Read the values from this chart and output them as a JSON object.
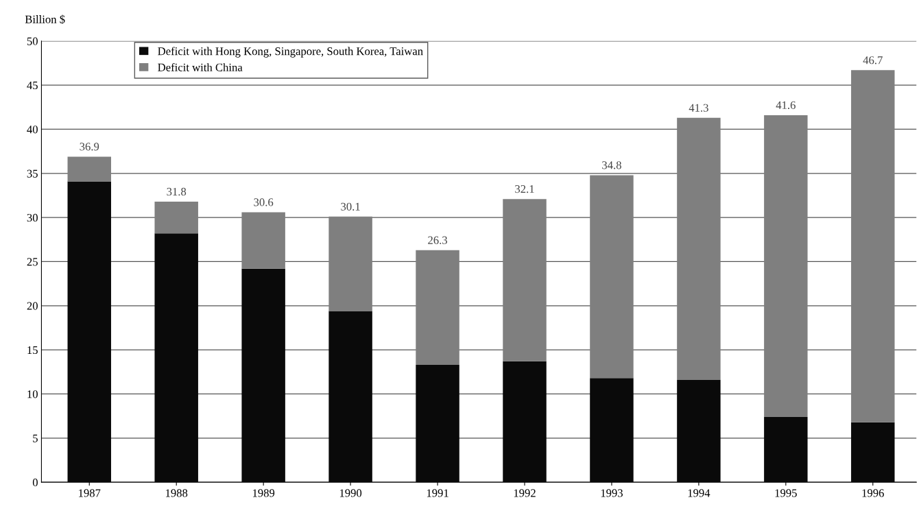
{
  "chart_data": {
    "type": "bar",
    "ylabel": "Billion $",
    "stacked": true,
    "categories": [
      "1987",
      "1988",
      "1989",
      "1990",
      "1991",
      "1992",
      "1993",
      "1994",
      "1995",
      "1996"
    ],
    "series": [
      {
        "name": "Deficit with Hong Kong, Singapore, South Korea, Taiwan",
        "color": "#0a0a0a",
        "values": [
          34.1,
          28.2,
          24.2,
          19.4,
          13.3,
          13.7,
          11.8,
          11.6,
          7.4,
          6.8
        ]
      },
      {
        "name": "Deficit with China",
        "color": "#7f7f7f",
        "values": [
          2.8,
          3.6,
          6.4,
          10.7,
          13.0,
          18.4,
          23.0,
          29.7,
          34.2,
          39.9
        ]
      }
    ],
    "totals": [
      "36.9",
      "31.8",
      "30.6",
      "30.1",
      "26.3",
      "32.1",
      "34.8",
      "41.3",
      "41.6",
      "46.7"
    ],
    "ylim": [
      0,
      50
    ],
    "yticks": [
      0,
      5,
      10,
      15,
      20,
      25,
      30,
      35,
      40,
      45,
      50
    ],
    "grid": "y",
    "legend": "top left"
  }
}
